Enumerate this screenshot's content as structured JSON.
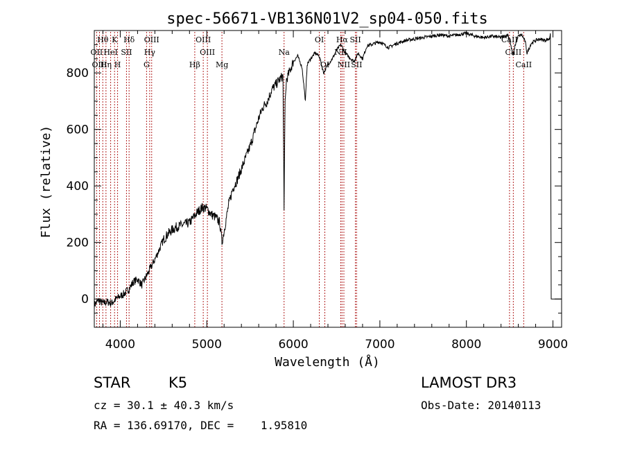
{
  "chart_data": {
    "type": "line",
    "title": "spec-56671-VB136N01V2_sp04-050.fits",
    "xlabel": "Wavelength (Å)",
    "ylabel": "Flux (relative)",
    "xlim": [
      3700,
      9100
    ],
    "ylim": [
      -100,
      950
    ],
    "x_ticks": [
      4000,
      5000,
      6000,
      7000,
      8000,
      9000
    ],
    "y_ticks": [
      0,
      200,
      400,
      600,
      800
    ],
    "grid": false,
    "series": [
      {
        "name": "flux",
        "x": [
          3700,
          3750,
          3800,
          3850,
          3900,
          3950,
          4000,
          4050,
          4100,
          4150,
          4200,
          4250,
          4300,
          4350,
          4400,
          4450,
          4500,
          4550,
          4600,
          4650,
          4700,
          4750,
          4800,
          4850,
          4900,
          4950,
          5000,
          5050,
          5100,
          5150,
          5175,
          5200,
          5250,
          5300,
          5350,
          5400,
          5450,
          5500,
          5550,
          5600,
          5650,
          5700,
          5750,
          5800,
          5850,
          5880,
          5893,
          5905,
          5920,
          5950,
          6000,
          6050,
          6100,
          6140,
          6160,
          6200,
          6250,
          6300,
          6350,
          6400,
          6450,
          6500,
          6550,
          6600,
          6650,
          6700,
          6750,
          6800,
          6850,
          6900,
          6950,
          7000,
          7050,
          7100,
          7200,
          7300,
          7400,
          7500,
          7600,
          7700,
          7800,
          7900,
          8000,
          8100,
          8200,
          8300,
          8400,
          8480,
          8500,
          8540,
          8560,
          8600,
          8640,
          8680,
          8700,
          8750,
          8800,
          8850,
          8900,
          8960,
          8970,
          8980
        ],
        "y": [
          -20,
          -5,
          -15,
          -10,
          -15,
          0,
          10,
          20,
          35,
          60,
          70,
          50,
          80,
          110,
          140,
          175,
          210,
          230,
          245,
          255,
          260,
          265,
          270,
          290,
          310,
          325,
          320,
          300,
          290,
          270,
          200,
          240,
          330,
          390,
          420,
          460,
          500,
          540,
          590,
          640,
          680,
          700,
          740,
          760,
          780,
          790,
          330,
          690,
          775,
          800,
          840,
          860,
          820,
          700,
          830,
          850,
          870,
          860,
          800,
          830,
          850,
          880,
          900,
          870,
          855,
          840,
          870,
          850,
          895,
          900,
          905,
          910,
          900,
          890,
          905,
          915,
          920,
          925,
          930,
          935,
          930,
          935,
          940,
          930,
          925,
          930,
          925,
          935,
          915,
          860,
          895,
          930,
          935,
          910,
          870,
          905,
          915,
          920,
          915,
          920,
          940,
          0
        ]
      }
    ],
    "lines": [
      {
        "name": "Hθ",
        "x": 3798,
        "row": 1
      },
      {
        "name": "OII",
        "x": 3727,
        "row": 2
      },
      {
        "name": "OIII",
        "x": 3760,
        "row": 3
      },
      {
        "name": "K",
        "x": 3934,
        "row": 1
      },
      {
        "name": "HeI",
        "x": 3889,
        "row": 2
      },
      {
        "name": "Hη",
        "x": 3835,
        "row": 3
      },
      {
        "name": "H",
        "x": 3969,
        "row": 3
      },
      {
        "name": "SII",
        "x": 4072,
        "row": 2
      },
      {
        "name": "Hδ",
        "x": 4102,
        "row": 1
      },
      {
        "name": "OIII",
        "x": 4363,
        "row": 1
      },
      {
        "name": "Hγ",
        "x": 4340,
        "row": 2
      },
      {
        "name": "G",
        "x": 4304,
        "row": 3
      },
      {
        "name": "OIII",
        "x": 4959,
        "row": 1
      },
      {
        "name": "OIII",
        "x": 5007,
        "row": 2
      },
      {
        "name": "Hβ",
        "x": 4861,
        "row": 3
      },
      {
        "name": "Mg",
        "x": 5175,
        "row": 3
      },
      {
        "name": "Na",
        "x": 5893,
        "row": 2
      },
      {
        "name": "OI",
        "x": 6300,
        "row": 1
      },
      {
        "name": "OI",
        "x": 6364,
        "row": 3
      },
      {
        "name": "Hα",
        "x": 6563,
        "row": 1
      },
      {
        "name": "NII",
        "x": 6548,
        "row": 2
      },
      {
        "name": "NII",
        "x": 6584,
        "row": 3
      },
      {
        "name": "SII",
        "x": 6717,
        "row": 1
      },
      {
        "name": "SII",
        "x": 6731,
        "row": 3
      },
      {
        "name": "CaII",
        "x": 8498,
        "row": 1
      },
      {
        "name": "CaII",
        "x": 8542,
        "row": 2
      },
      {
        "name": "CaII",
        "x": 8662,
        "row": 3
      }
    ]
  },
  "info": {
    "object_class": "STAR",
    "subclass": "K5",
    "cz": "cz = 30.1 ± 40.3 km/s",
    "coords": "RA = 136.69170, DEC =    1.95810",
    "survey": "LAMOST DR3",
    "obs_date": "Obs-Date: 20140113"
  },
  "colors": {
    "line_marker": "#b22222",
    "spectrum": "#000000"
  }
}
